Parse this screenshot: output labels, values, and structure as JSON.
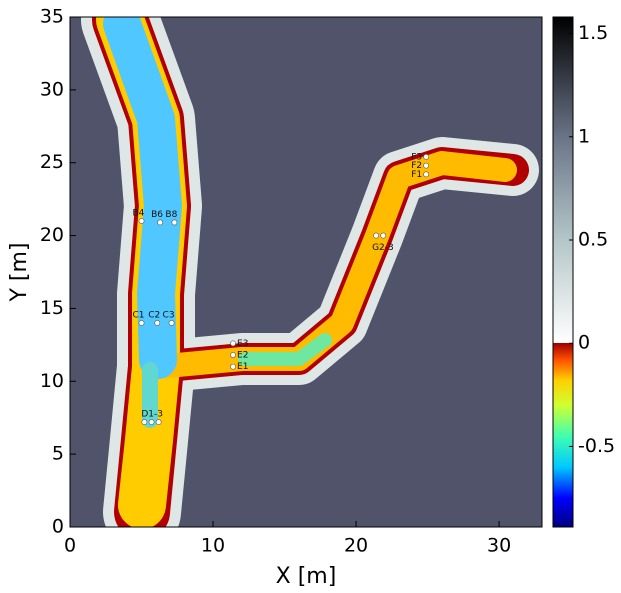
{
  "chart_data": {
    "type": "map",
    "xlabel": "X [m]",
    "ylabel": "Y [m]",
    "xlim": [
      0,
      33
    ],
    "xticks": [
      0,
      10,
      20,
      30
    ],
    "ylim": [
      0,
      35
    ],
    "yticks": [
      0,
      5,
      10,
      15,
      20,
      25,
      30,
      35
    ],
    "clim": [
      -0.89,
      1.58
    ],
    "cticks": [
      -0.5,
      0,
      0.5,
      1,
      1.5
    ],
    "colormap": [
      [
        -0.89,
        "#00007f"
      ],
      [
        -0.75,
        "#0000ff"
      ],
      [
        -0.6,
        "#00c8ff"
      ],
      [
        -0.45,
        "#40ffb0"
      ],
      [
        -0.3,
        "#d0ff30"
      ],
      [
        -0.18,
        "#ffd000"
      ],
      [
        -0.08,
        "#ff5000"
      ],
      [
        0,
        "#a00000"
      ],
      [
        0,
        "#ffffff"
      ],
      [
        0.5,
        "#b4c6c8"
      ],
      [
        1,
        "#6a7488"
      ],
      [
        1.58,
        "#000000"
      ]
    ],
    "background": "#50536a",
    "stations": [
      {
        "label": "B4",
        "x": [
          5
        ],
        "y": [
          21
        ]
      },
      {
        "label": "B6",
        "x": [
          6.3
        ],
        "y": [
          20.9
        ]
      },
      {
        "label": "B8",
        "x": [
          7.3
        ],
        "y": [
          20.9
        ]
      },
      {
        "label": "C1",
        "x": [
          5
        ],
        "y": [
          14
        ]
      },
      {
        "label": "C2",
        "x": [
          6.1
        ],
        "y": [
          14
        ]
      },
      {
        "label": "C3",
        "x": [
          7.1
        ],
        "y": [
          14
        ]
      },
      {
        "label": "D1-3",
        "x": [
          5.2,
          5.7,
          6.2
        ],
        "y": [
          7.2,
          7.2,
          7.2
        ]
      },
      {
        "label": "E3",
        "x": [
          11.4
        ],
        "y": [
          12.6
        ]
      },
      {
        "label": "E2",
        "x": [
          11.4
        ],
        "y": [
          11.8
        ]
      },
      {
        "label": "E1",
        "x": [
          11.4
        ],
        "y": [
          11
        ]
      },
      {
        "label": "F3",
        "x": [
          24.9
        ],
        "y": [
          25.4
        ]
      },
      {
        "label": "F2",
        "x": [
          24.9
        ],
        "y": [
          24.8
        ]
      },
      {
        "label": "F1",
        "x": [
          24.9
        ],
        "y": [
          24.2
        ]
      },
      {
        "label": "G2-3",
        "x": [
          21.4,
          21.9
        ],
        "y": [
          20,
          20
        ]
      }
    ]
  }
}
